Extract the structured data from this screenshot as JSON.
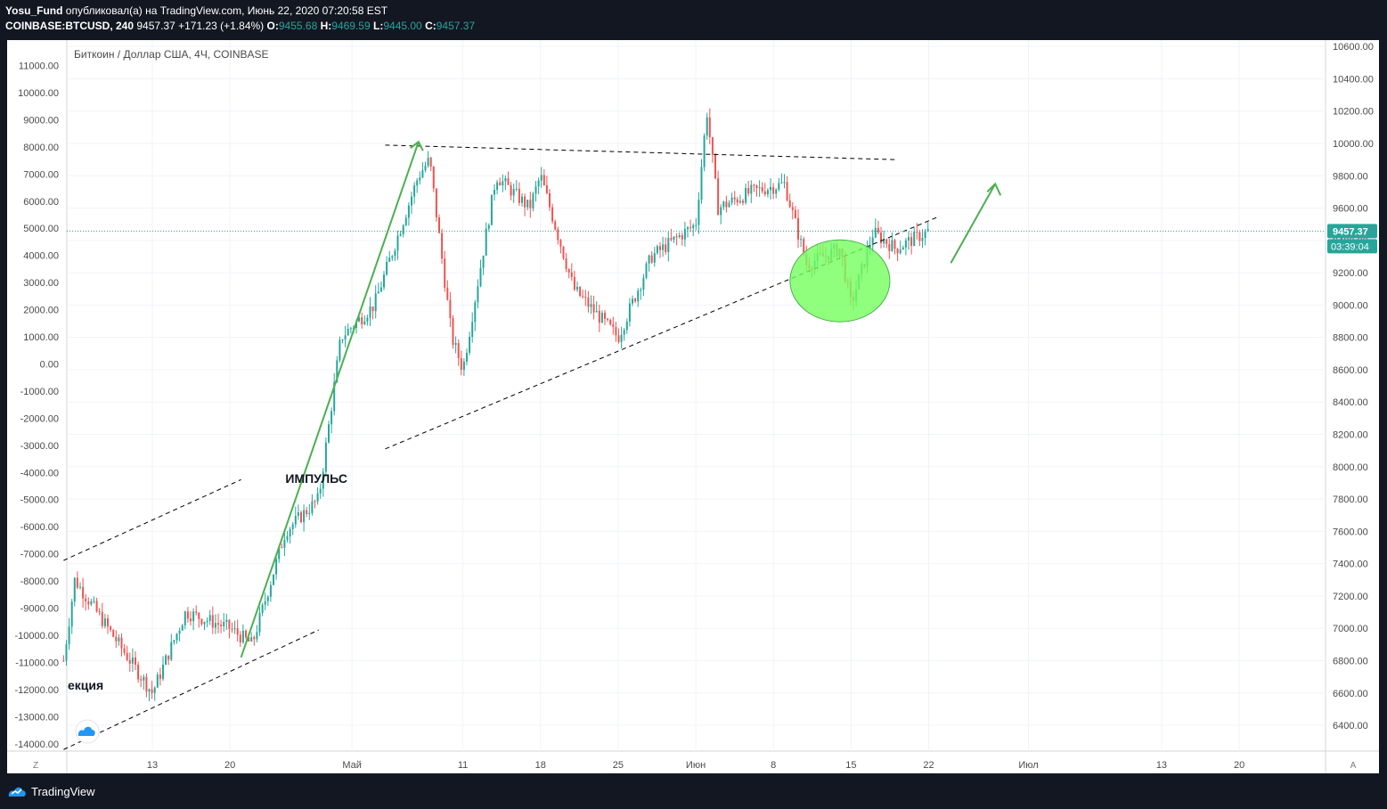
{
  "header": {
    "author": "Yosu_Fund",
    "published_text": "опубликовал(а) на TradingView.com, Июнь 22, 2020 07:20:58 EST",
    "symbol": "COINBASE:BTCUSD, 240",
    "last": "9457.37",
    "change": "+171.23 (+1.84%)",
    "o_label": "O:",
    "o_value": "9455.68",
    "h_label": "H:",
    "h_value": "9469.59",
    "l_label": "L:",
    "l_value": "9445.00",
    "c_label": "C:",
    "c_value": "9457.37"
  },
  "footer": {
    "brand": "TradingView"
  },
  "colors": {
    "up": "#26a69a",
    "down": "#ef5350",
    "annotation": "#4caf50",
    "ellipse_fill": "#76ff5e",
    "frame": "#131722"
  },
  "chart_data": {
    "type": "candlestick",
    "title": "Биткоин / Доллар США, 4Ч, COINBASE",
    "symbol": "COINBASE:BTCUSD",
    "timeframe": "240",
    "right_axis": {
      "ticks": [
        "10600.00",
        "10400.00",
        "10200.00",
        "10000.00",
        "9800.00",
        "9600.00",
        "9400.00",
        "9200.00",
        "9000.00",
        "8800.00",
        "8600.00",
        "8400.00",
        "8200.00",
        "8000.00",
        "7800.00",
        "7600.00",
        "7400.00",
        "7200.00",
        "7000.00",
        "6800.00",
        "6600.00",
        "6400.00"
      ],
      "range": [
        6280,
        10660
      ]
    },
    "left_axis": {
      "ticks": [
        "11000.00",
        "10000.00",
        "9000.00",
        "8000.00",
        "7000.00",
        "6000.00",
        "5000.00",
        "4000.00",
        "3000.00",
        "2000.00",
        "1000.00",
        "0.00",
        "-1000.00",
        "-2000.00",
        "-3000.00",
        "-4000.00",
        "-5000.00",
        "-6000.00",
        "-7000.00",
        "-8000.00",
        "-9000.00",
        "-10000.00",
        "-11000.00",
        "-12000.00",
        "-13000.00",
        "-14000.00"
      ]
    },
    "x_axis": {
      "ticks": [
        "13",
        "20",
        "Май",
        "11",
        "18",
        "25",
        "Июн",
        "8",
        "15",
        "22",
        "Июл",
        "13",
        "20"
      ],
      "left_corner": "Z",
      "right_corner": "A"
    },
    "current_price": "9457.37",
    "countdown": "03:39:04",
    "key_points": [
      {
        "date": "2020-04-05",
        "price": 6800
      },
      {
        "date": "2020-04-06",
        "price": 7300
      },
      {
        "date": "2020-04-10",
        "price": 6900
      },
      {
        "date": "2020-04-13",
        "price": 6600
      },
      {
        "date": "2020-04-16",
        "price": 7100
      },
      {
        "date": "2020-04-20",
        "price": 7000
      },
      {
        "date": "2020-04-22",
        "price": 6900
      },
      {
        "date": "2020-04-25",
        "price": 7600
      },
      {
        "date": "2020-04-28",
        "price": 7800
      },
      {
        "date": "2020-04-30",
        "price": 8800
      },
      {
        "date": "2020-05-03",
        "price": 9000
      },
      {
        "date": "2020-05-07",
        "price": 9800
      },
      {
        "date": "2020-05-08",
        "price": 9900
      },
      {
        "date": "2020-05-10",
        "price": 8800
      },
      {
        "date": "2020-05-11",
        "price": 8600
      },
      {
        "date": "2020-05-14",
        "price": 9800
      },
      {
        "date": "2020-05-17",
        "price": 9600
      },
      {
        "date": "2020-05-18",
        "price": 9800
      },
      {
        "date": "2020-05-21",
        "price": 9100
      },
      {
        "date": "2020-05-25",
        "price": 8800
      },
      {
        "date": "2020-05-28",
        "price": 9300
      },
      {
        "date": "2020-06-01",
        "price": 9500
      },
      {
        "date": "2020-06-02",
        "price": 10200
      },
      {
        "date": "2020-06-03",
        "price": 9600
      },
      {
        "date": "2020-06-06",
        "price": 9700
      },
      {
        "date": "2020-06-09",
        "price": 9750
      },
      {
        "date": "2020-06-11",
        "price": 9250
      },
      {
        "date": "2020-06-14",
        "price": 9350
      },
      {
        "date": "2020-06-15",
        "price": 9000
      },
      {
        "date": "2020-06-17",
        "price": 9450
      },
      {
        "date": "2020-06-19",
        "price": 9350
      },
      {
        "date": "2020-06-22",
        "price": 9457
      }
    ],
    "annotations": {
      "impulse_label": "ИМПУЛЬС",
      "correction_label": "екция"
    }
  }
}
